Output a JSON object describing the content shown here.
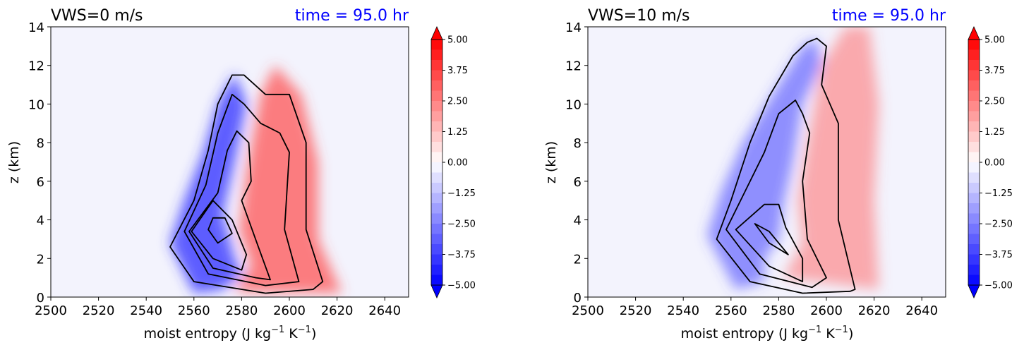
{
  "chart_data": [
    {
      "type": "contour",
      "title": "VWS=0 m/s",
      "time_label": "time = 95.0 hr",
      "xlabel": "moist entropy (J kg",
      "xlabel_sup1": "−1",
      "xlabel_mid": " K",
      "xlabel_sup2": "−1",
      "xlabel_end": ")",
      "ylabel": "z (km)",
      "xlim": [
        2500,
        2650
      ],
      "ylim": [
        0,
        14
      ],
      "xticks": [
        "2500",
        "2520",
        "2540",
        "2560",
        "2580",
        "2600",
        "2620",
        "2640"
      ],
      "yticks": [
        "0",
        "2",
        "4",
        "6",
        "8",
        "10",
        "12",
        "14"
      ],
      "colorbar": {
        "min": -5.0,
        "max": 5.0,
        "extend": "both",
        "ticks": [
          "5.00",
          "3.75",
          "2.50",
          "1.25",
          "0.00",
          "−1.25",
          "−2.50",
          "−3.75",
          "−5.00"
        ]
      },
      "blue_region": [
        [
          2560,
          0.2
        ],
        [
          2550,
          2.8
        ],
        [
          2556,
          5
        ],
        [
          2564,
          7.5
        ],
        [
          2570,
          10
        ],
        [
          2577,
          11.6
        ],
        [
          2582,
          10
        ],
        [
          2577,
          7
        ],
        [
          2572,
          4.3
        ],
        [
          2577,
          2
        ],
        [
          2580,
          1.2
        ],
        [
          2572,
          0.4
        ]
      ],
      "red_region": [
        [
          2577,
          0.3
        ],
        [
          2584,
          1.6
        ],
        [
          2579,
          3.5
        ],
        [
          2582,
          6.5
        ],
        [
          2588,
          10.5
        ],
        [
          2594,
          12
        ],
        [
          2605,
          10.5
        ],
        [
          2612,
          7
        ],
        [
          2612,
          3
        ],
        [
          2622,
          0.2
        ]
      ],
      "contours": [
        [
          [
            2590,
            0.2
          ],
          [
            2560,
            0.8
          ],
          [
            2550,
            2.6
          ],
          [
            2560,
            5
          ],
          [
            2566,
            7.6
          ],
          [
            2570,
            10
          ],
          [
            2576,
            11.5
          ],
          [
            2581,
            11.5
          ],
          [
            2590,
            10.5
          ],
          [
            2600,
            10.5
          ],
          [
            2607,
            8
          ],
          [
            2607,
            3.5
          ],
          [
            2614,
            0.8
          ],
          [
            2610,
            0.4
          ],
          [
            2590,
            0.2
          ]
        ],
        [
          [
            2590,
            0.6
          ],
          [
            2566,
            1.2
          ],
          [
            2556,
            3.4
          ],
          [
            2565,
            5.8
          ],
          [
            2570,
            8.5
          ],
          [
            2576,
            10.5
          ],
          [
            2581,
            10
          ],
          [
            2588,
            9
          ],
          [
            2596,
            8.5
          ],
          [
            2600,
            7.5
          ],
          [
            2598,
            3.5
          ],
          [
            2604,
            0.8
          ],
          [
            2590,
            0.6
          ]
        ],
        [
          [
            2586,
            1.0
          ],
          [
            2568,
            1.5
          ],
          [
            2558,
            3.4
          ],
          [
            2570,
            5.4
          ],
          [
            2574,
            7.6
          ],
          [
            2578,
            8.6
          ],
          [
            2583,
            8
          ],
          [
            2584,
            6
          ],
          [
            2580,
            5
          ],
          [
            2587,
            2.6
          ],
          [
            2592,
            0.9
          ],
          [
            2586,
            1.0
          ]
        ],
        [
          [
            2580,
            1.4
          ],
          [
            2568,
            2
          ],
          [
            2559,
            3.4
          ],
          [
            2568,
            5
          ],
          [
            2576,
            4
          ],
          [
            2582,
            2.2
          ],
          [
            2580,
            1.4
          ]
        ],
        [
          [
            2576,
            3.3
          ],
          [
            2570,
            2.8
          ],
          [
            2566,
            3.5
          ],
          [
            2568,
            4.1
          ],
          [
            2573,
            4.1
          ],
          [
            2576,
            3.3
          ]
        ]
      ]
    },
    {
      "type": "contour",
      "title": "VWS=10 m/s",
      "time_label": "time = 95.0 hr",
      "xlabel": "moist entropy (J kg",
      "xlabel_sup1": "−1",
      "xlabel_mid": " K",
      "xlabel_sup2": "−1",
      "xlabel_end": ")",
      "ylabel": "z (km)",
      "xlim": [
        2500,
        2650
      ],
      "ylim": [
        0,
        14
      ],
      "xticks": [
        "2500",
        "2520",
        "2540",
        "2560",
        "2580",
        "2600",
        "2620",
        "2640"
      ],
      "yticks": [
        "0",
        "2",
        "4",
        "6",
        "8",
        "10",
        "12",
        "14"
      ],
      "colorbar": {
        "min": -5.0,
        "max": 5.0,
        "extend": "both",
        "ticks": [
          "5.00",
          "3.75",
          "2.50",
          "1.25",
          "0.00",
          "−1.25",
          "−2.50",
          "−3.75",
          "−5.00"
        ]
      },
      "blue_region": [
        [
          2562,
          0.4
        ],
        [
          2550,
          3.2
        ],
        [
          2556,
          5.5
        ],
        [
          2565,
          8
        ],
        [
          2575,
          10
        ],
        [
          2590,
          13
        ],
        [
          2596,
          13.4
        ],
        [
          2598,
          12
        ],
        [
          2590,
          10
        ],
        [
          2586,
          7
        ],
        [
          2582,
          4.8
        ],
        [
          2580,
          3
        ],
        [
          2574,
          2
        ],
        [
          2574,
          0.8
        ]
      ],
      "red_region": [
        [
          2582,
          1
        ],
        [
          2590,
          2.8
        ],
        [
          2588,
          5
        ],
        [
          2592,
          8
        ],
        [
          2598,
          12
        ],
        [
          2608,
          14
        ],
        [
          2618,
          14
        ],
        [
          2622,
          10
        ],
        [
          2620,
          5
        ],
        [
          2622,
          0.4
        ]
      ],
      "contours": [
        [
          [
            2610,
            0.3
          ],
          [
            2590,
            0.2
          ],
          [
            2568,
            0.8
          ],
          [
            2554,
            3
          ],
          [
            2560,
            5
          ],
          [
            2568,
            8
          ],
          [
            2576,
            10.4
          ],
          [
            2586,
            12.5
          ],
          [
            2592,
            13.2
          ],
          [
            2596,
            13.4
          ],
          [
            2600,
            13
          ],
          [
            2598,
            11
          ],
          [
            2605,
            9
          ],
          [
            2605,
            4
          ],
          [
            2612,
            0.4
          ],
          [
            2610,
            0.3
          ]
        ],
        [
          [
            2594,
            0.5
          ],
          [
            2572,
            1.2
          ],
          [
            2558,
            3.5
          ],
          [
            2566,
            5.5
          ],
          [
            2574,
            7.5
          ],
          [
            2580,
            9.5
          ],
          [
            2587,
            10.2
          ],
          [
            2590,
            9.5
          ],
          [
            2593,
            8.5
          ],
          [
            2590,
            6
          ],
          [
            2592,
            3
          ],
          [
            2600,
            1
          ],
          [
            2594,
            0.5
          ]
        ],
        [
          [
            2590,
            0.8
          ],
          [
            2576,
            1.6
          ],
          [
            2562,
            3.5
          ],
          [
            2574,
            4.8
          ],
          [
            2580,
            4.8
          ],
          [
            2583,
            3.6
          ],
          [
            2590,
            2
          ],
          [
            2590,
            0.8
          ]
        ],
        [
          [
            2584,
            2.2
          ],
          [
            2576,
            2.8
          ],
          [
            2570,
            3.8
          ],
          [
            2576,
            3.4
          ],
          [
            2584,
            2.2
          ]
        ]
      ]
    }
  ]
}
